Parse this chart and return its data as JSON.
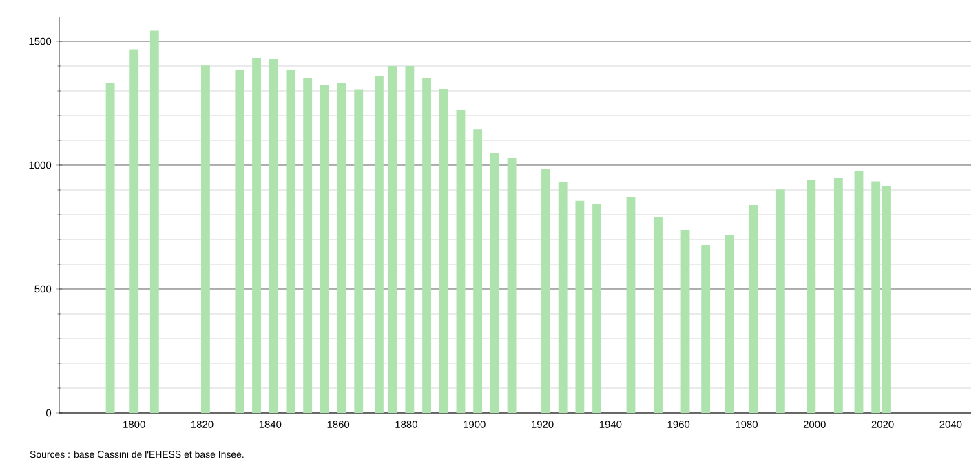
{
  "chart_data": {
    "type": "bar",
    "color": "#aee3ae",
    "x": [
      1793,
      1800,
      1806,
      1821,
      1831,
      1836,
      1841,
      1846,
      1851,
      1856,
      1861,
      1866,
      1872,
      1876,
      1881,
      1886,
      1891,
      1896,
      1901,
      1906,
      1911,
      1921,
      1926,
      1931,
      1936,
      1946,
      1954,
      1962,
      1968,
      1975,
      1982,
      1990,
      1999,
      2007,
      2013,
      2018,
      2021
    ],
    "values": [
      1333,
      1468,
      1543,
      1402,
      1383,
      1433,
      1428,
      1383,
      1350,
      1322,
      1333,
      1304,
      1361,
      1400,
      1400,
      1350,
      1306,
      1222,
      1144,
      1048,
      1028,
      983,
      933,
      856,
      844,
      872,
      789,
      739,
      678,
      717,
      839,
      902,
      939,
      950,
      978,
      935,
      917
    ],
    "xlim": [
      1778,
      2046
    ],
    "ylim": [
      0,
      1600
    ],
    "xticks": [
      1800,
      1820,
      1840,
      1860,
      1880,
      1900,
      1920,
      1940,
      1960,
      1980,
      2000,
      2020,
      2040
    ],
    "yticks": [
      0,
      500,
      1000,
      1500
    ],
    "grid": "y",
    "annotations": [
      "Sources : base Cassini de l'EHESS et base Insee."
    ]
  }
}
